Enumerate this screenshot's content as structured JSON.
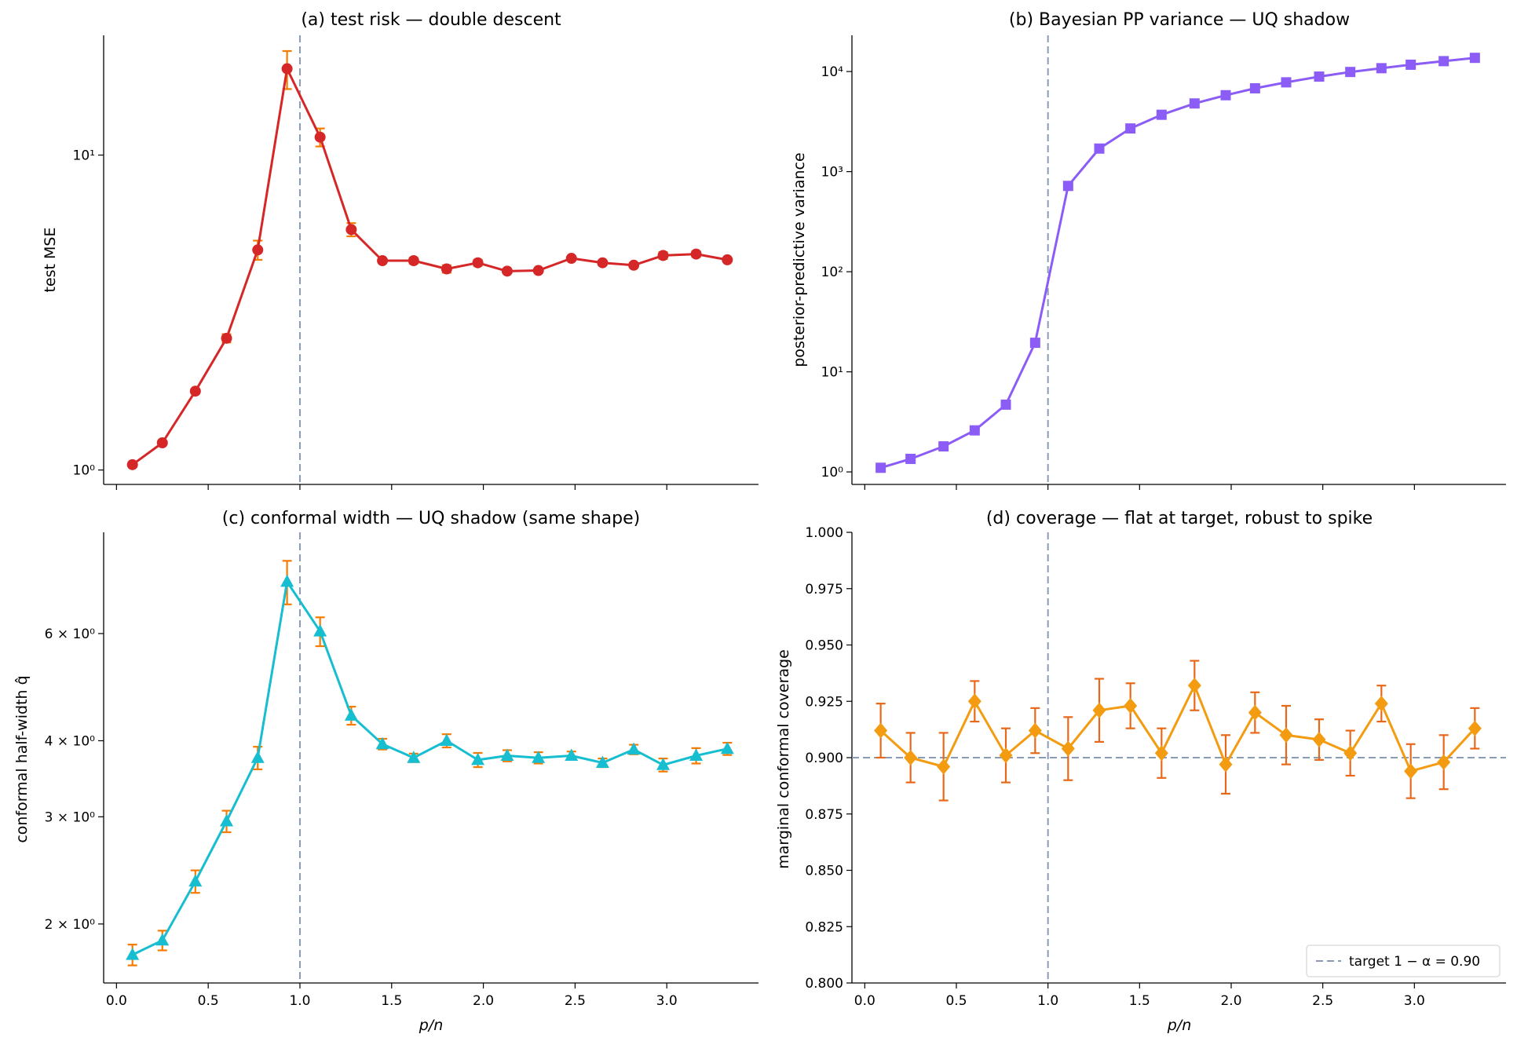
{
  "chart_data": [
    {
      "id": "a",
      "type": "line",
      "title": "(a) test risk — double descent",
      "xlabel": "",
      "ylabel": "test MSE",
      "yscale": "log",
      "xlim": [
        -0.07,
        3.5
      ],
      "ylim": [
        0.9,
        24
      ],
      "color": "#d62728",
      "err_color": "#f57c00",
      "marker": "circle",
      "x": [
        0.087,
        0.25,
        0.43,
        0.6,
        0.77,
        0.93,
        1.11,
        1.28,
        1.45,
        1.62,
        1.8,
        1.97,
        2.13,
        2.3,
        2.48,
        2.65,
        2.82,
        2.98,
        3.16,
        3.33
      ],
      "values": [
        1.04,
        1.22,
        1.78,
        2.62,
        5.0,
        18.8,
        11.4,
        5.8,
        4.62,
        4.62,
        4.35,
        4.55,
        4.28,
        4.3,
        4.7,
        4.55,
        4.47,
        4.8,
        4.85,
        4.65
      ],
      "err": [
        0,
        0,
        0,
        0.08,
        0.35,
        2.6,
        0.75,
        0.28,
        0.07,
        0.1,
        0.12,
        0.1,
        0,
        0.05,
        0.07,
        0.05,
        0.07,
        0.12,
        0.1,
        0
      ],
      "xticks": [],
      "yticks": [
        {
          "v": 1,
          "label": "10⁰"
        },
        {
          "v": 10,
          "label": "10¹"
        }
      ],
      "vline": 1.0
    },
    {
      "id": "b",
      "type": "line",
      "title": "(b) Bayesian PP variance — UQ shadow",
      "xlabel": "",
      "ylabel": "posterior-predictive variance",
      "yscale": "log",
      "xlim": [
        -0.07,
        3.5
      ],
      "ylim": [
        0.75,
        23000
      ],
      "color": "#8b5cf6",
      "marker": "square",
      "x": [
        0.087,
        0.25,
        0.43,
        0.6,
        0.77,
        0.93,
        1.11,
        1.28,
        1.45,
        1.62,
        1.8,
        1.97,
        2.13,
        2.3,
        2.48,
        2.65,
        2.82,
        2.98,
        3.16,
        3.33
      ],
      "values": [
        1.1,
        1.35,
        1.8,
        2.6,
        4.7,
        19.5,
        720,
        1700,
        2700,
        3700,
        4800,
        5800,
        6800,
        7800,
        8900,
        9900,
        10800,
        11700,
        12700,
        13700
      ],
      "xticks": [],
      "yticks": [
        {
          "v": 1,
          "label": "10⁰"
        },
        {
          "v": 10,
          "label": "10¹"
        },
        {
          "v": 100,
          "label": "10²"
        },
        {
          "v": 1000,
          "label": "10³"
        },
        {
          "v": 10000,
          "label": "10⁴"
        }
      ],
      "vline": 1.0
    },
    {
      "id": "c",
      "type": "line",
      "title": "(c) conformal width — UQ shadow (same shape)",
      "xlabel": "p/n",
      "ylabel": "conformal half-width q̂",
      "yscale": "log",
      "xlim": [
        -0.07,
        3.5
      ],
      "ylim": [
        1.6,
        8.8
      ],
      "color": "#17becf",
      "err_color": "#f57c00",
      "marker": "triangle",
      "x": [
        0.087,
        0.25,
        0.43,
        0.6,
        0.77,
        0.93,
        1.11,
        1.28,
        1.45,
        1.62,
        1.8,
        1.97,
        2.13,
        2.3,
        2.48,
        2.65,
        2.82,
        2.98,
        3.16,
        3.33
      ],
      "values": [
        1.78,
        1.88,
        2.35,
        2.95,
        3.75,
        7.3,
        6.05,
        4.4,
        3.95,
        3.75,
        4.0,
        3.72,
        3.78,
        3.75,
        3.78,
        3.68,
        3.87,
        3.65,
        3.78,
        3.88
      ],
      "err": [
        0.07,
        0.07,
        0.1,
        0.12,
        0.16,
        0.6,
        0.33,
        0.15,
        0.08,
        0.06,
        0.1,
        0.1,
        0.08,
        0.08,
        0.06,
        0.06,
        0.07,
        0.09,
        0.11,
        0.09
      ],
      "xticks": [
        {
          "v": 0.0,
          "label": "0.0"
        },
        {
          "v": 0.5,
          "label": "0.5"
        },
        {
          "v": 1.0,
          "label": "1.0"
        },
        {
          "v": 1.5,
          "label": "1.5"
        },
        {
          "v": 2.0,
          "label": "2.0"
        },
        {
          "v": 2.5,
          "label": "2.5"
        },
        {
          "v": 3.0,
          "label": "3.0"
        }
      ],
      "yticks": [
        {
          "v": 2,
          "label": "2 × 10⁰"
        },
        {
          "v": 3,
          "label": "3 × 10⁰"
        },
        {
          "v": 4,
          "label": "4 × 10⁰"
        },
        {
          "v": 6,
          "label": "6 × 10⁰"
        }
      ],
      "vline": 1.0
    },
    {
      "id": "d",
      "type": "line",
      "title": "(d) coverage — flat at target, robust to spike",
      "xlabel": "p/n",
      "ylabel": "marginal conformal coverage",
      "yscale": "linear",
      "xlim": [
        -0.07,
        3.5
      ],
      "ylim": [
        0.8,
        1.0
      ],
      "color": "#f39c12",
      "err_color": "#e8681a",
      "marker": "diamond",
      "x": [
        0.087,
        0.25,
        0.43,
        0.6,
        0.77,
        0.93,
        1.11,
        1.28,
        1.45,
        1.62,
        1.8,
        1.97,
        2.13,
        2.3,
        2.48,
        2.65,
        2.82,
        2.98,
        3.16,
        3.33
      ],
      "values": [
        0.912,
        0.9,
        0.896,
        0.925,
        0.901,
        0.912,
        0.904,
        0.921,
        0.923,
        0.902,
        0.932,
        0.897,
        0.92,
        0.91,
        0.908,
        0.902,
        0.924,
        0.894,
        0.898,
        0.913
      ],
      "err": [
        0.012,
        0.011,
        0.015,
        0.009,
        0.012,
        0.01,
        0.014,
        0.014,
        0.01,
        0.011,
        0.011,
        0.013,
        0.009,
        0.013,
        0.009,
        0.01,
        0.008,
        0.012,
        0.012,
        0.009
      ],
      "xticks": [
        {
          "v": 0.0,
          "label": "0.0"
        },
        {
          "v": 0.5,
          "label": "0.5"
        },
        {
          "v": 1.0,
          "label": "1.0"
        },
        {
          "v": 1.5,
          "label": "1.5"
        },
        {
          "v": 2.0,
          "label": "2.0"
        },
        {
          "v": 2.5,
          "label": "2.5"
        },
        {
          "v": 3.0,
          "label": "3.0"
        }
      ],
      "yticks": [
        {
          "v": 0.8,
          "label": "0.800"
        },
        {
          "v": 0.825,
          "label": "0.825"
        },
        {
          "v": 0.85,
          "label": "0.850"
        },
        {
          "v": 0.875,
          "label": "0.875"
        },
        {
          "v": 0.9,
          "label": "0.900"
        },
        {
          "v": 0.925,
          "label": "0.925"
        },
        {
          "v": 0.95,
          "label": "0.950"
        },
        {
          "v": 0.975,
          "label": "0.975"
        },
        {
          "v": 1.0,
          "label": "1.000"
        }
      ],
      "vline": 1.0,
      "hline": 0.9,
      "legend": {
        "label": "target 1 − α = 0.90",
        "position": "lower-right"
      }
    }
  ],
  "style": {
    "ref_line_color": "#8a9bb5"
  }
}
